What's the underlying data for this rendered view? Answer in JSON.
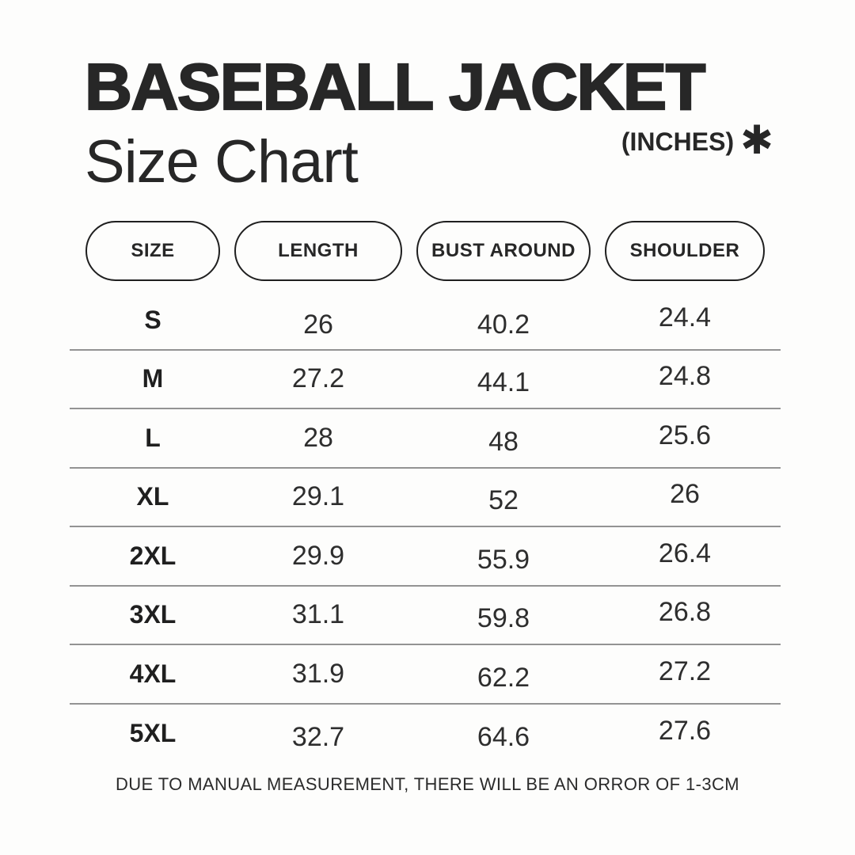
{
  "header": {
    "title": "BASEBALL JACKET",
    "subtitle": "Size Chart",
    "unit_label": "(INCHES)",
    "asterisk_icon": "✱"
  },
  "chart_data": {
    "type": "table",
    "title": "Baseball Jacket Size Chart",
    "unit": "inches",
    "columns": [
      "SIZE",
      "LENGTH",
      "BUST AROUND",
      "SHOULDER"
    ],
    "rows": [
      [
        "S",
        26,
        40.2,
        24.4
      ],
      [
        "M",
        27.2,
        44.1,
        24.8
      ],
      [
        "L",
        28,
        48,
        25.6
      ],
      [
        "XL",
        29.1,
        52,
        26
      ],
      [
        "2XL",
        29.9,
        55.9,
        26.4
      ],
      [
        "3XL",
        31.1,
        59.8,
        26.8
      ],
      [
        "4XL",
        31.9,
        62.2,
        27.2
      ],
      [
        "5XL",
        32.7,
        64.6,
        27.6
      ]
    ],
    "note": "DUE TO MANUAL MEASUREMENT, THERE WILL BE AN ORROR OF 1-3CM"
  }
}
